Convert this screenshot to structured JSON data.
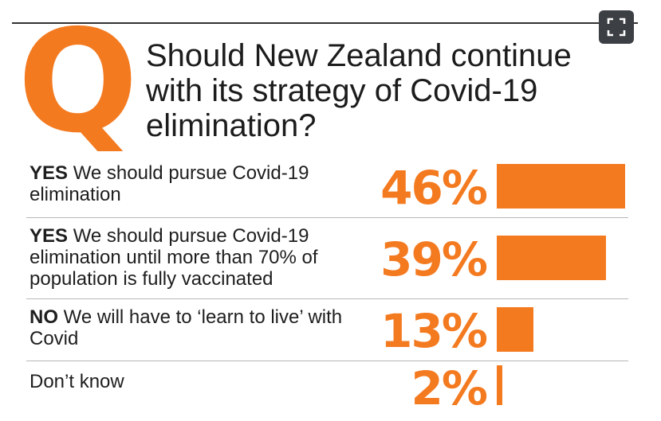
{
  "q_letter": "Q",
  "question": "Should New Zealand continue with its strategy of Covid-19 elimination?",
  "expand_icon": "expand-icon",
  "colors": {
    "accent": "#f47a20",
    "text": "#1e1e1e",
    "rule": "#b8b8b8"
  },
  "chart_data": {
    "type": "bar",
    "title": "Should New Zealand continue with its strategy of Covid-19 elimination?",
    "categories": [
      "YES We should pursue Covid-19 elimination",
      "YES We should pursue Covid-19 elimination until more than 70% of population is fully vaccinated",
      "NO We will have to 'learn to live' with Covid",
      "Don't know"
    ],
    "values": [
      46,
      39,
      13,
      2
    ],
    "unit": "%",
    "rows": [
      {
        "lead": "YES",
        "rest": " We should pursue Covid-19 elimination",
        "pct_label": "46%"
      },
      {
        "lead": "YES",
        "rest": " We should pursue Covid-19 elimination until more than 70% of population is fully vaccinated",
        "pct_label": "39%"
      },
      {
        "lead": "NO",
        "rest": " We will have to ‘learn to live’ with Covid",
        "pct_label": "13%"
      },
      {
        "lead": "",
        "rest": "Don’t know",
        "pct_label": "2%"
      }
    ]
  }
}
